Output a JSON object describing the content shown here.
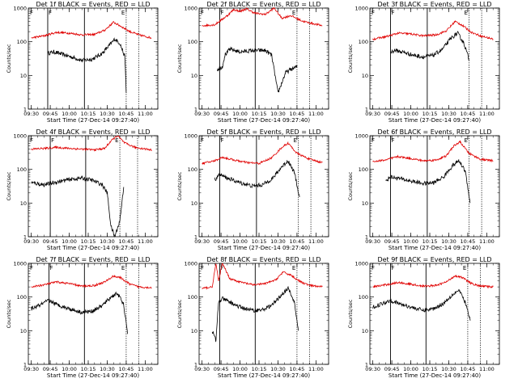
{
  "common": {
    "xlabel": "Start Time (27-Dec-14 09:27:40)",
    "ylabel": "Counts/sec",
    "x_ticks": [
      "09:30",
      "09:45",
      "10:00",
      "10:15",
      "10:30",
      "10:45",
      "11:00"
    ],
    "y_ticks": [
      "1",
      "10",
      "100",
      "1000"
    ],
    "marker_F": "F",
    "marker_E": "E"
  },
  "colors": {
    "events": "#000000",
    "lld": "#e00000",
    "axes": "#000000"
  },
  "chart_data": [
    {
      "type": "line",
      "title": "Det 1f BLACK = Events, RED = LLD",
      "x_range": [
        "09:27:40",
        "11:10:00"
      ],
      "y_scale": "log",
      "ylim": [
        1,
        1000
      ],
      "vlines_solid": [
        "09:43",
        "10:12"
      ],
      "vlines_dotted": [
        "10:45",
        "10:55"
      ],
      "series": [
        {
          "name": "Events",
          "color": "#000000",
          "x": [
            "09:43",
            "09:48",
            "09:55",
            "10:02",
            "10:10",
            "10:18",
            "10:26",
            "10:32",
            "10:36",
            "10:40",
            "10:44",
            "10:45"
          ],
          "values": [
            45,
            50,
            42,
            35,
            28,
            30,
            45,
            80,
            120,
            90,
            35,
            3
          ]
        },
        {
          "name": "LLD",
          "color": "#e00000",
          "x": [
            "09:30",
            "09:40",
            "09:50",
            "10:00",
            "10:10",
            "10:20",
            "10:28",
            "10:35",
            "10:40",
            "10:48",
            "10:55",
            "11:05"
          ],
          "values": [
            130,
            150,
            190,
            180,
            160,
            165,
            220,
            380,
            300,
            200,
            160,
            130
          ]
        }
      ]
    },
    {
      "type": "line",
      "title": "Det 2f BLACK = Events, RED = LLD",
      "x_range": [
        "09:27:40",
        "11:10:00"
      ],
      "y_scale": "log",
      "ylim": [
        1,
        1000
      ],
      "vlines_solid": [
        "09:44",
        "10:12"
      ],
      "vlines_dotted": [
        "10:45",
        "10:55"
      ],
      "series": [
        {
          "name": "Events",
          "color": "#000000",
          "x": [
            "09:42",
            "09:46",
            "09:48",
            "09:52",
            "10:00",
            "10:10",
            "10:20",
            "10:25",
            "10:30",
            "10:33",
            "10:36",
            "10:40",
            "10:45"
          ],
          "values": [
            15,
            18,
            40,
            60,
            50,
            55,
            55,
            40,
            3,
            6,
            12,
            15,
            18
          ]
        },
        {
          "name": "LLD",
          "color": "#e00000",
          "x": [
            "09:30",
            "09:40",
            "09:50",
            "09:55",
            "10:00",
            "10:05",
            "10:12",
            "10:20",
            "10:27",
            "10:33",
            "10:40",
            "10:50",
            "11:05"
          ],
          "values": [
            300,
            320,
            600,
            900,
            800,
            950,
            700,
            650,
            1000,
            500,
            600,
            400,
            300
          ]
        }
      ]
    },
    {
      "type": "line",
      "title": "Det 3f BLACK = Events, RED = LLD",
      "x_range": [
        "09:27:40",
        "11:10:00"
      ],
      "y_scale": "log",
      "ylim": [
        1,
        1000
      ],
      "vlines_solid": [
        "09:44",
        "10:13"
      ],
      "vlines_dotted": [
        "10:46",
        "10:56"
      ],
      "series": [
        {
          "name": "Events",
          "color": "#000000",
          "x": [
            "09:44",
            "09:48",
            "09:55",
            "10:02",
            "10:10",
            "10:18",
            "10:25",
            "10:32",
            "10:37",
            "10:42",
            "10:46"
          ],
          "values": [
            50,
            55,
            48,
            40,
            35,
            40,
            60,
            130,
            180,
            90,
            30
          ]
        },
        {
          "name": "LLD",
          "color": "#e00000",
          "x": [
            "09:30",
            "09:40",
            "09:50",
            "10:00",
            "10:10",
            "10:20",
            "10:28",
            "10:35",
            "10:40",
            "10:48",
            "10:55",
            "11:05"
          ],
          "values": [
            120,
            140,
            180,
            170,
            150,
            160,
            210,
            400,
            320,
            190,
            150,
            120
          ]
        }
      ]
    },
    {
      "type": "line",
      "title": "Det 4f BLACK = Events, RED = LLD",
      "x_range": [
        "09:27:40",
        "11:10:00"
      ],
      "y_scale": "log",
      "ylim": [
        1,
        1000
      ],
      "vlines_solid": [
        "09:45",
        "10:13"
      ],
      "vlines_dotted": [
        "10:40",
        "10:54"
      ],
      "series": [
        {
          "name": "Events",
          "color": "#000000",
          "x": [
            "09:30",
            "09:40",
            "09:50",
            "10:00",
            "10:10",
            "10:18",
            "10:26",
            "10:30",
            "10:33",
            "10:36",
            "10:40",
            "10:43"
          ],
          "values": [
            40,
            35,
            42,
            50,
            55,
            48,
            35,
            20,
            2,
            1,
            3,
            30
          ]
        },
        {
          "name": "LLD",
          "color": "#e00000",
          "x": [
            "09:30",
            "09:40",
            "09:50",
            "10:00",
            "10:10",
            "10:20",
            "10:28",
            "10:33",
            "10:38",
            "10:44",
            "10:52",
            "11:05"
          ],
          "values": [
            400,
            420,
            450,
            420,
            400,
            380,
            420,
            700,
            1000,
            600,
            450,
            380
          ]
        }
      ]
    },
    {
      "type": "line",
      "title": "Det 5f BLACK = Events, RED = LLD",
      "x_range": [
        "09:27:40",
        "11:10:00"
      ],
      "y_scale": "log",
      "ylim": [
        1,
        1000
      ],
      "vlines_solid": [
        "09:44",
        "10:13"
      ],
      "vlines_dotted": [
        "10:46",
        "10:56"
      ],
      "series": [
        {
          "name": "Events",
          "color": "#000000",
          "x": [
            "09:40",
            "09:44",
            "09:50",
            "10:00",
            "10:10",
            "10:18",
            "10:26",
            "10:33",
            "10:38",
            "10:43",
            "10:47"
          ],
          "values": [
            50,
            70,
            55,
            40,
            32,
            35,
            55,
            120,
            180,
            80,
            15
          ]
        },
        {
          "name": "LLD",
          "color": "#e00000",
          "x": [
            "09:30",
            "09:40",
            "09:46",
            "09:55",
            "10:05",
            "10:15",
            "10:25",
            "10:33",
            "10:38",
            "10:45",
            "10:55",
            "11:05"
          ],
          "values": [
            150,
            180,
            230,
            190,
            160,
            150,
            220,
            450,
            600,
            300,
            200,
            160
          ]
        }
      ]
    },
    {
      "type": "line",
      "title": "Det 6f BLACK = Events, RED = LLD",
      "x_range": [
        "09:27:40",
        "11:10:00"
      ],
      "y_scale": "log",
      "ylim": [
        1,
        1000
      ],
      "vlines_solid": [
        "09:44",
        "10:13"
      ],
      "vlines_dotted": [
        "10:46",
        "10:56"
      ],
      "series": [
        {
          "name": "Events",
          "color": "#000000",
          "x": [
            "09:40",
            "09:44",
            "09:50",
            "10:00",
            "10:10",
            "10:18",
            "10:26",
            "10:33",
            "10:38",
            "10:43",
            "10:47"
          ],
          "values": [
            45,
            60,
            55,
            45,
            38,
            40,
            60,
            130,
            180,
            90,
            10
          ]
        },
        {
          "name": "LLD",
          "color": "#e00000",
          "x": [
            "09:30",
            "09:40",
            "09:50",
            "10:00",
            "10:10",
            "10:20",
            "10:28",
            "10:34",
            "10:39",
            "10:46",
            "10:55",
            "11:05"
          ],
          "values": [
            170,
            190,
            240,
            210,
            180,
            190,
            250,
            500,
            650,
            300,
            200,
            180
          ]
        }
      ]
    },
    {
      "type": "line",
      "title": "Det 7f BLACK = Events, RED = LLD",
      "x_range": [
        "09:27:40",
        "11:10:00"
      ],
      "y_scale": "log",
      "ylim": [
        1,
        1000
      ],
      "vlines_solid": [
        "09:44",
        "10:12"
      ],
      "vlines_dotted": [
        "10:45",
        "10:55"
      ],
      "series": [
        {
          "name": "Events",
          "color": "#000000",
          "x": [
            "09:30",
            "09:38",
            "09:44",
            "09:50",
            "10:00",
            "10:10",
            "10:18",
            "10:26",
            "10:33",
            "10:38",
            "10:43",
            "10:46"
          ],
          "values": [
            45,
            60,
            80,
            60,
            45,
            35,
            38,
            55,
            100,
            130,
            60,
            8
          ]
        },
        {
          "name": "LLD",
          "color": "#e00000",
          "x": [
            "09:30",
            "09:40",
            "09:50",
            "10:00",
            "10:10",
            "10:20",
            "10:28",
            "10:35",
            "10:40",
            "10:48",
            "10:55",
            "11:05"
          ],
          "values": [
            200,
            230,
            280,
            250,
            210,
            220,
            280,
            420,
            380,
            240,
            200,
            190
          ]
        }
      ]
    },
    {
      "type": "line",
      "title": "Det 8f BLACK = Events, RED = LLD",
      "x_range": [
        "09:27:40",
        "11:10:00"
      ],
      "y_scale": "log",
      "ylim": [
        1,
        1000
      ],
      "vlines_solid": [
        "09:44",
        "10:12"
      ],
      "vlines_dotted": [
        "10:45",
        "10:55"
      ],
      "series": [
        {
          "name": "Events",
          "color": "#000000",
          "x": [
            "09:38",
            "09:41",
            "09:43",
            "09:46",
            "09:52",
            "10:00",
            "10:10",
            "10:18",
            "10:26",
            "10:33",
            "10:38",
            "10:43",
            "10:46"
          ],
          "values": [
            10,
            5,
            70,
            90,
            70,
            50,
            40,
            42,
            60,
            120,
            180,
            70,
            10
          ]
        },
        {
          "name": "LLD",
          "color": "#e00000",
          "x": [
            "09:30",
            "09:38",
            "09:41",
            "09:43",
            "09:46",
            "09:52",
            "10:00",
            "10:10",
            "10:20",
            "10:28",
            "10:34",
            "10:40",
            "10:48",
            "10:55",
            "11:05"
          ],
          "values": [
            180,
            200,
            1000,
            300,
            1000,
            350,
            280,
            230,
            250,
            320,
            550,
            450,
            280,
            220,
            200
          ]
        }
      ]
    },
    {
      "type": "line",
      "title": "Det 9f BLACK = Events, RED = LLD",
      "x_range": [
        "09:27:40",
        "11:10:00"
      ],
      "y_scale": "log",
      "ylim": [
        1,
        1000
      ],
      "vlines_solid": [
        "09:44",
        "10:12"
      ],
      "vlines_dotted": [
        "10:45",
        "10:55"
      ],
      "series": [
        {
          "name": "Events",
          "color": "#000000",
          "x": [
            "09:30",
            "09:38",
            "09:44",
            "09:50",
            "10:00",
            "10:10",
            "10:18",
            "10:26",
            "10:33",
            "10:38",
            "10:43",
            "10:47"
          ],
          "values": [
            50,
            65,
            80,
            65,
            50,
            40,
            45,
            65,
            120,
            160,
            70,
            20
          ]
        },
        {
          "name": "LLD",
          "color": "#e00000",
          "x": [
            "09:30",
            "09:40",
            "09:50",
            "10:00",
            "10:10",
            "10:20",
            "10:28",
            "10:35",
            "10:40",
            "10:48",
            "10:55",
            "11:05"
          ],
          "values": [
            200,
            230,
            270,
            240,
            210,
            220,
            280,
            430,
            390,
            250,
            210,
            200
          ]
        }
      ]
    }
  ]
}
